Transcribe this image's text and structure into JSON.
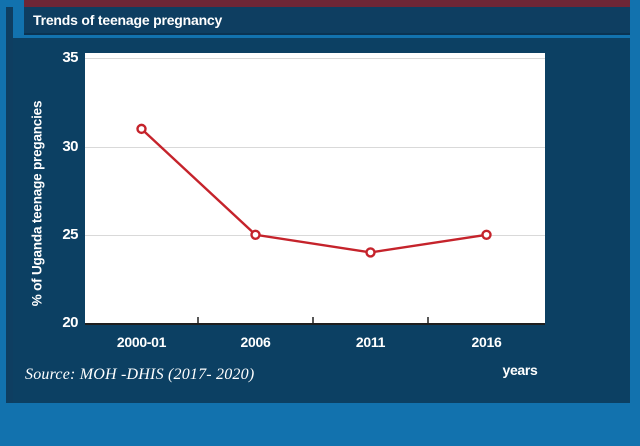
{
  "title_bar": {
    "title": "Trends of teenage pregnancy"
  },
  "chart_data": {
    "type": "line",
    "categories": [
      "2000-01",
      "2006",
      "2011",
      "2016"
    ],
    "series": [
      {
        "name": "% of Uganda teenage pregancies",
        "values": [
          31,
          25,
          24,
          25
        ]
      }
    ],
    "title": "Trends of teenage pregnancy",
    "xlabel": "years",
    "ylabel": "% of Uganda teenage pregancies",
    "ylim": [
      20,
      35.3
    ],
    "yticks": [
      20,
      25,
      30,
      35
    ],
    "grid": true,
    "legend_position": "none",
    "line_color": "#c5232b",
    "marker_style": "open-circle"
  },
  "footer": {
    "source_note": "Source: MOH -DHIS (2017- 2020)"
  },
  "colors": {
    "background": "#1272ae",
    "panel": "#0c4063",
    "title_bar": "#0e3e61",
    "accent_maroon": "#6e2636",
    "plot_background": "#ffffff",
    "gridline": "#d9d9d9",
    "axis": "#1f1f1f",
    "series_red": "#c5232b",
    "text": "#ffffff"
  }
}
